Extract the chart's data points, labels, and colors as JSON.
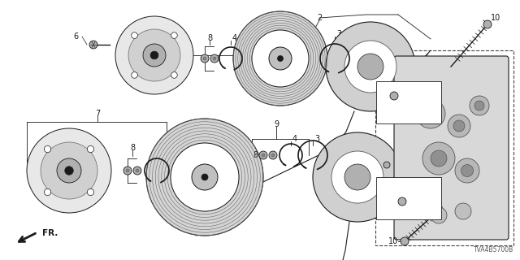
{
  "bg_color": "#ffffff",
  "watermark": "TVA4B5700B",
  "fig_width": 6.4,
  "fig_height": 3.2,
  "dpi": 100
}
